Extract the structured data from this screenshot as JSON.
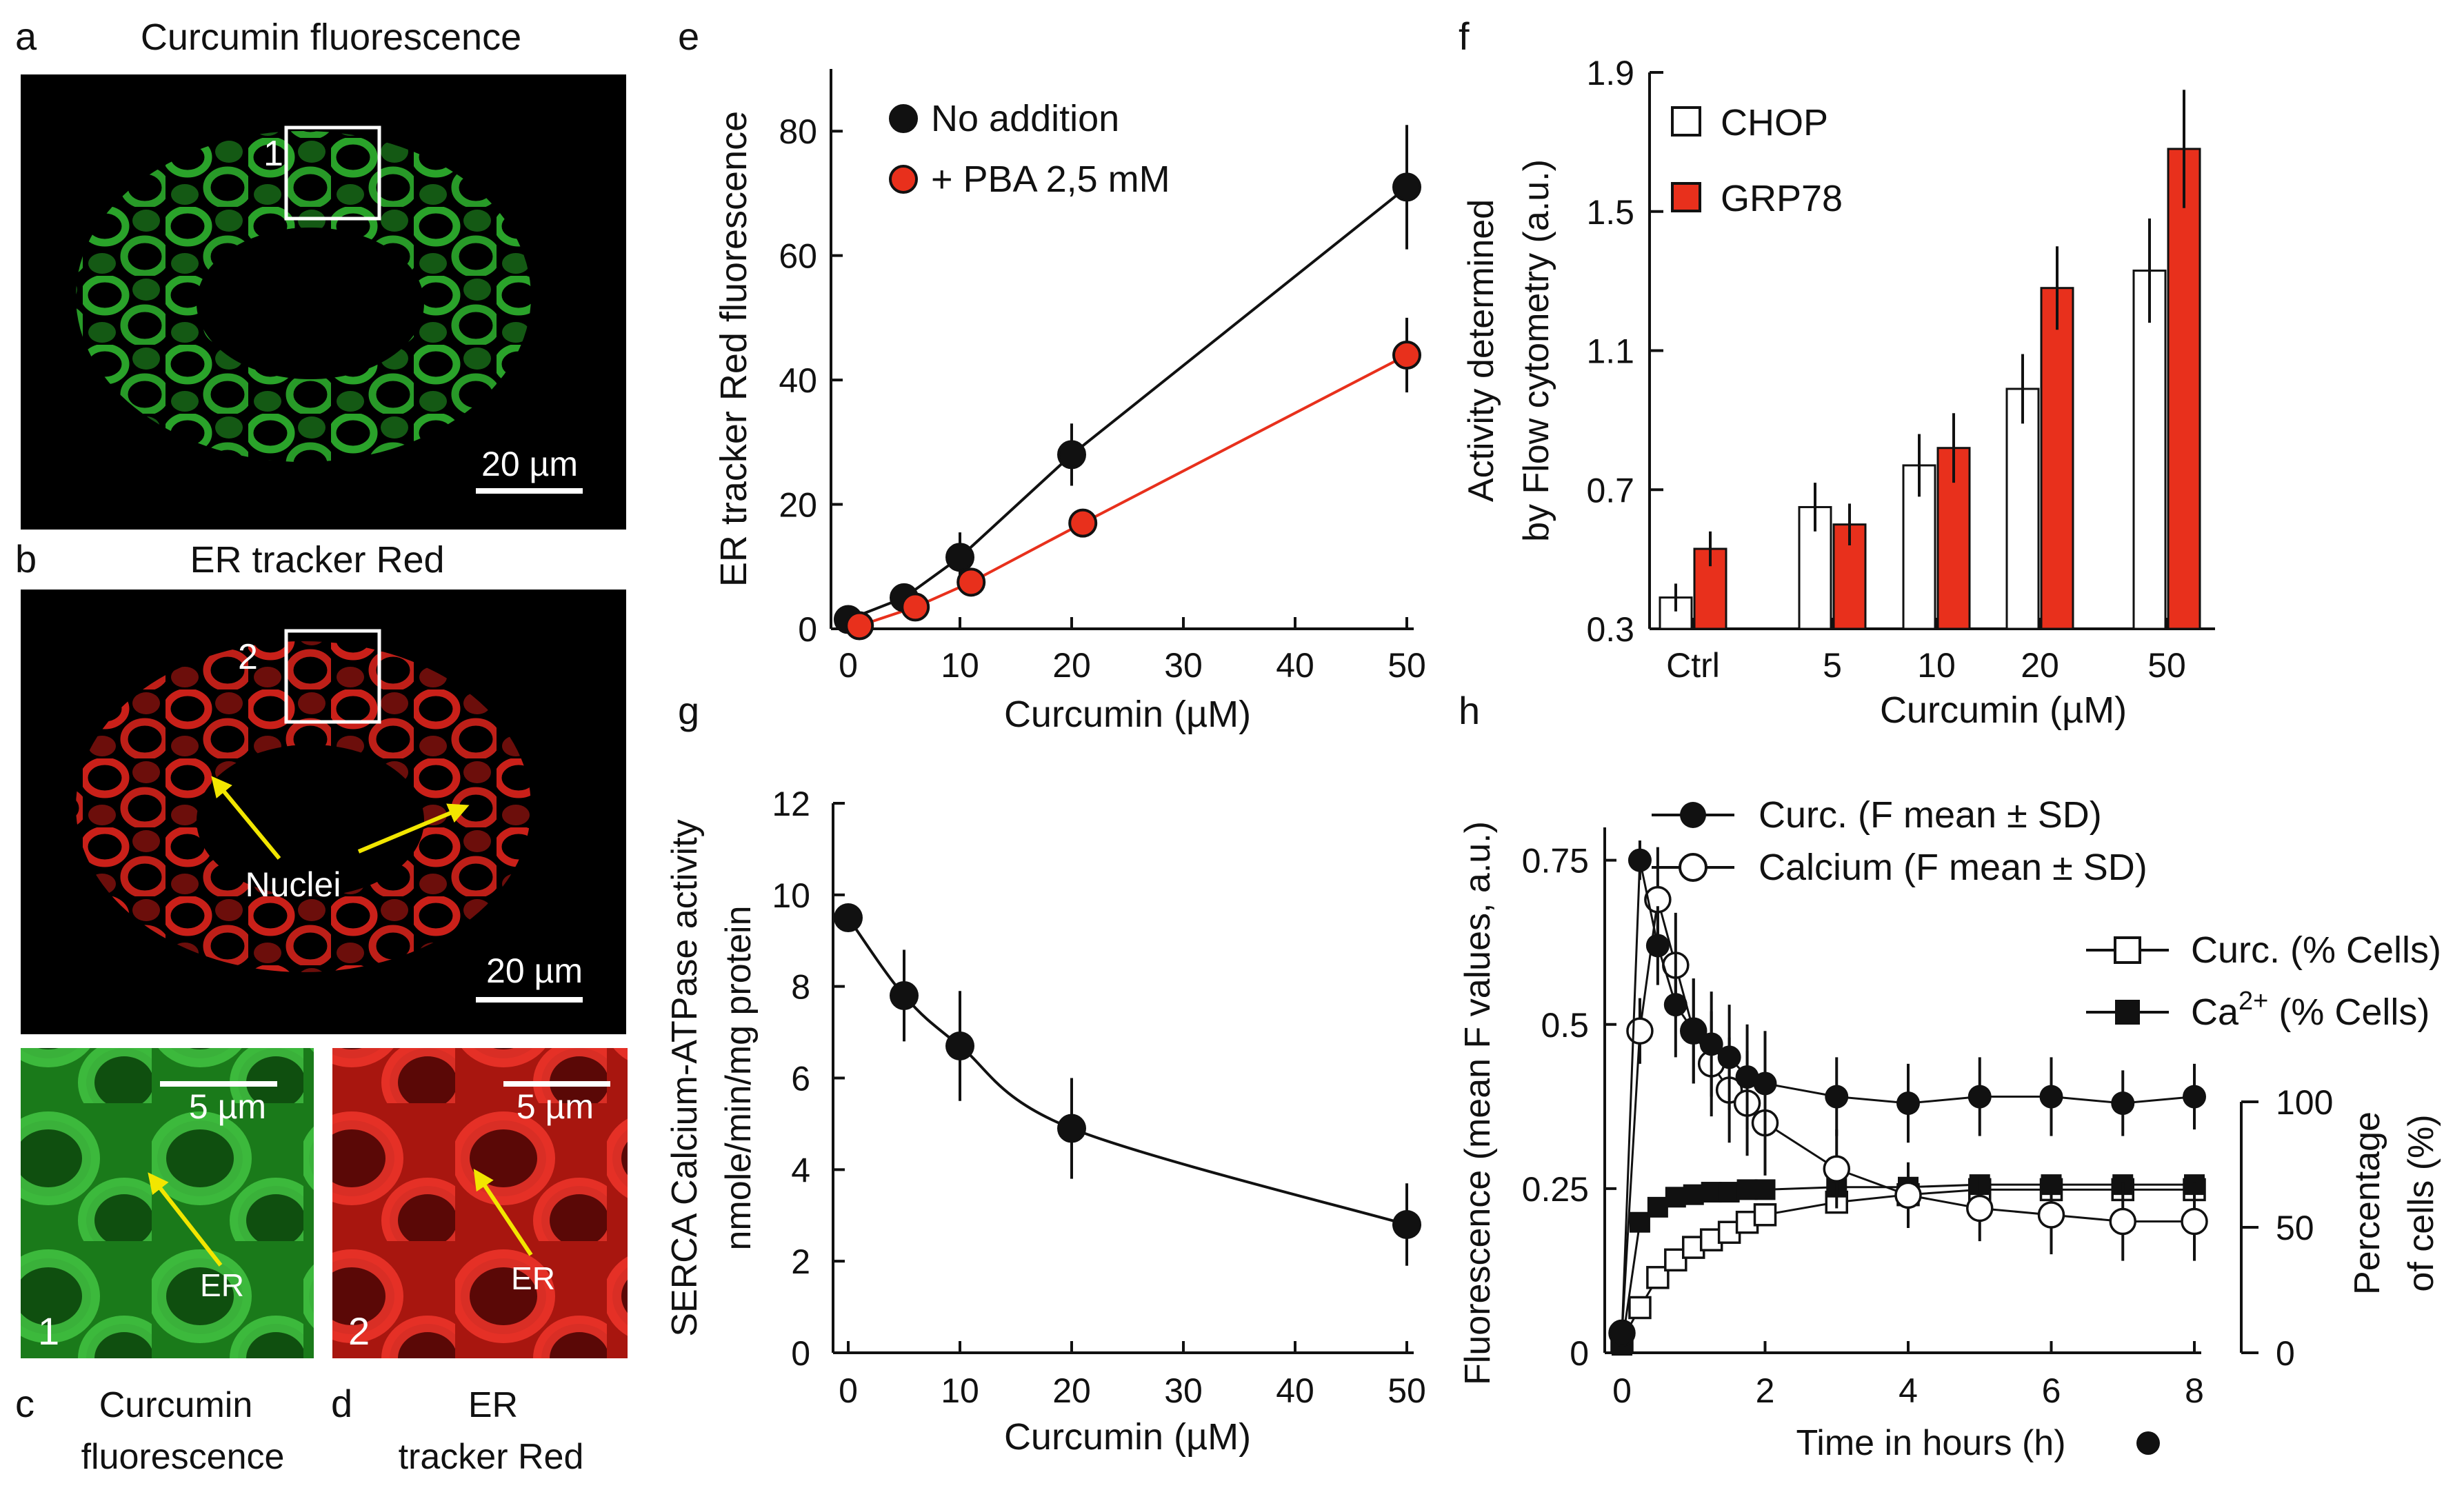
{
  "figure": {
    "panel_letters": {
      "a": "a",
      "b": "b",
      "c": "c",
      "d": "d",
      "e": "e",
      "f": "f",
      "g": "g",
      "h": "h"
    },
    "micrographs": {
      "a": {
        "title": "Curcumin fluorescence",
        "box_label": "1",
        "scalebar": "20 µm",
        "color": "#2fb52f"
      },
      "b": {
        "title": "ER tracker Red",
        "box_label": "2",
        "scalebar": "20 µm",
        "arrow_label": "Nuclei",
        "color": "#e0241c"
      },
      "c": {
        "corner_label": "1",
        "scalebar": "5 µm",
        "arrow_label": "ER",
        "caption_line1": "Curcumin",
        "caption_line2": "fluorescence",
        "color": "#2fb52f"
      },
      "d": {
        "corner_label": "2",
        "scalebar": "5 µm",
        "arrow_label": "ER",
        "caption_line1": "ER",
        "caption_line2": "tracker Red",
        "color": "#e0241c"
      }
    },
    "colors": {
      "black": "#111111",
      "red": "#e8301c",
      "arrow": "#f2e600",
      "bg_dark": "#000000"
    }
  },
  "chart_data": [
    {
      "panel": "e",
      "type": "line",
      "xlabel": "Curcumin (µM)",
      "ylabel": "ER tracker Red fluorescence",
      "xlim": [
        0,
        50
      ],
      "ylim": [
        0,
        90
      ],
      "xticks": [
        0,
        10,
        20,
        30,
        40,
        50
      ],
      "yticks": [
        0,
        20,
        40,
        60,
        80
      ],
      "series": [
        {
          "name": "No addition",
          "marker": "filled-black",
          "x": [
            0,
            5,
            10,
            20,
            50
          ],
          "y": [
            1.5,
            5,
            11.5,
            28,
            71
          ],
          "err": [
            0,
            0,
            4,
            5,
            10
          ]
        },
        {
          "name": "+ PBA 2,5 mM",
          "marker": "filled-red",
          "x": [
            1,
            6,
            11,
            21,
            50
          ],
          "y": [
            0.5,
            3.5,
            7.5,
            17,
            44
          ],
          "err": [
            0,
            0,
            2,
            2,
            6
          ]
        }
      ]
    },
    {
      "panel": "f",
      "type": "bar",
      "xlabel": "Curcumin (µM)",
      "ylabel_line1": "Activity determined",
      "ylabel_line2": "by Flow cytometry (a.u.)",
      "ylim": [
        0.3,
        1.9
      ],
      "yticks": [
        "0.3",
        "0.7",
        "1.1",
        "1.5",
        "1.9"
      ],
      "categories": [
        "Ctrl",
        "5",
        "10",
        "20",
        "50"
      ],
      "series": [
        {
          "name": "CHOP",
          "style": "open",
          "values": [
            0.39,
            0.65,
            0.77,
            0.99,
            1.33
          ],
          "err": [
            0.04,
            0.07,
            0.09,
            0.1,
            0.15
          ]
        },
        {
          "name": "GRP78",
          "style": "red",
          "values": [
            0.53,
            0.6,
            0.82,
            1.28,
            1.68
          ],
          "err": [
            0.05,
            0.06,
            0.1,
            0.12,
            0.17
          ]
        }
      ]
    },
    {
      "panel": "g",
      "type": "line",
      "xlabel": "Curcumin (µM)",
      "ylabel_line1": "SERCA Calcium-ATPase activity",
      "ylabel_line2": "nmole/min/mg protein",
      "xlim": [
        0,
        50
      ],
      "ylim": [
        0,
        12
      ],
      "xticks": [
        0,
        10,
        20,
        30,
        40,
        50
      ],
      "yticks": [
        0,
        2,
        4,
        6,
        8,
        10,
        12
      ],
      "series": [
        {
          "name": "SERCA activity",
          "x": [
            0,
            5,
            10,
            20,
            50
          ],
          "y": [
            9.5,
            7.8,
            6.7,
            4.9,
            2.8
          ],
          "err": [
            0,
            1.0,
            1.2,
            1.1,
            0.9
          ]
        }
      ]
    },
    {
      "panel": "h",
      "type": "line",
      "xlabel": "Time in hours (h)",
      "ylabel": "Fluorescence (mean F values, a.u.)",
      "y2label_line1": "Percentage",
      "y2label_line2": "of cells (%)",
      "xlim": [
        0,
        8
      ],
      "ylim": [
        0,
        0.8
      ],
      "y2lim": [
        0,
        100
      ],
      "xticks": [
        "0",
        "2",
        "4",
        "6",
        "8"
      ],
      "yticks": [
        "0",
        "0.25",
        "0.5",
        "0.75"
      ],
      "y2ticks": [
        "0",
        "50",
        "100"
      ],
      "series": [
        {
          "name": "Curc. (F mean ± SD)",
          "marker": "filled-circle",
          "axis": "left",
          "x": [
            0,
            0.25,
            0.5,
            0.75,
            1,
            1.25,
            1.5,
            1.75,
            2,
            3,
            4,
            5,
            6,
            7,
            8
          ],
          "y": [
            0.03,
            0.75,
            0.62,
            0.53,
            0.49,
            0.47,
            0.45,
            0.42,
            0.41,
            0.39,
            0.38,
            0.39,
            0.39,
            0.38,
            0.39
          ],
          "err": [
            0,
            0.03,
            0.06,
            0.08,
            0.08,
            0.08,
            0.08,
            0.08,
            0.08,
            0.06,
            0.06,
            0.06,
            0.06,
            0.05,
            0.05
          ]
        },
        {
          "name": "Calcium (F mean ± SD)",
          "marker": "open-circle",
          "axis": "left",
          "x": [
            0,
            0.25,
            0.5,
            0.75,
            1,
            1.25,
            1.5,
            1.75,
            2,
            3,
            4,
            5,
            6,
            7,
            8
          ],
          "y": [
            0.03,
            0.49,
            0.69,
            0.59,
            0.49,
            0.44,
            0.4,
            0.38,
            0.35,
            0.28,
            0.24,
            0.22,
            0.21,
            0.2,
            0.2
          ],
          "err": [
            0,
            0.05,
            0.08,
            0.08,
            0.08,
            0.08,
            0.08,
            0.08,
            0.08,
            0.06,
            0.05,
            0.05,
            0.06,
            0.06,
            0.06
          ]
        },
        {
          "name": "Curc. (% Cells)",
          "marker": "open-square",
          "axis": "right",
          "x": [
            0,
            0.25,
            0.5,
            0.75,
            1,
            1.25,
            1.5,
            1.75,
            2,
            3,
            4,
            5,
            6,
            7,
            8
          ],
          "y": [
            5,
            18,
            30,
            37,
            42,
            45,
            48,
            52,
            55,
            60,
            63,
            65,
            65,
            65,
            65
          ],
          "err": [
            0,
            0,
            0,
            0,
            0,
            0,
            0,
            0,
            0,
            0,
            0,
            0,
            0,
            0,
            0
          ]
        },
        {
          "name": "Ca2+ (% Cells)",
          "label_main": "Ca",
          "label_sup": "2+",
          "label_tail": " (% Cells)",
          "marker": "filled-square",
          "axis": "right",
          "x": [
            0,
            0.25,
            0.5,
            0.75,
            1,
            1.25,
            1.5,
            1.75,
            2,
            3,
            4,
            5,
            6,
            7,
            8
          ],
          "y": [
            3,
            52,
            58,
            62,
            63,
            64,
            64,
            65,
            65,
            66,
            66,
            67,
            67,
            67,
            67
          ],
          "err": [
            0,
            0,
            0,
            0,
            0,
            0,
            0,
            0,
            0,
            0,
            0,
            0,
            0,
            0,
            0
          ]
        }
      ]
    }
  ]
}
